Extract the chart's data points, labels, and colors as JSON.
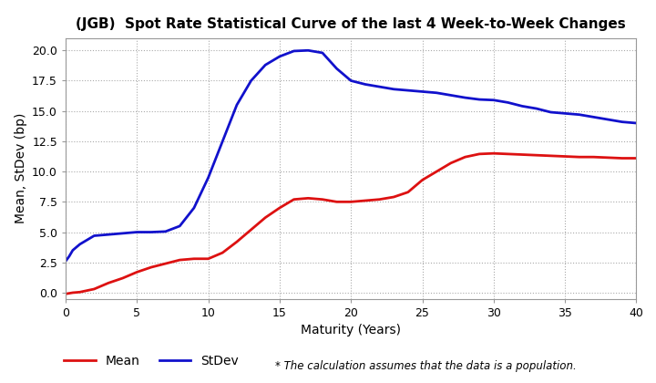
{
  "title": "(JGB)  Spot Rate Statistical Curve of the last 4 Week-to-Week Changes",
  "xlabel": "Maturity (Years)",
  "ylabel": "Mean, StDev (bp)",
  "xlim": [
    0,
    40
  ],
  "ylim": [
    -0.5,
    21
  ],
  "yticks": [
    0.0,
    2.5,
    5.0,
    7.5,
    10.0,
    12.5,
    15.0,
    17.5,
    20.0
  ],
  "xticks": [
    0,
    5,
    10,
    15,
    20,
    25,
    30,
    35,
    40
  ],
  "mean_color": "#dd1111",
  "stdev_color": "#1111cc",
  "background_color": "#ffffff",
  "legend_note": "* The calculation assumes that the data is a population.",
  "mean_x": [
    0,
    0.25,
    0.5,
    1,
    2,
    3,
    4,
    5,
    6,
    7,
    8,
    9,
    10,
    11,
    12,
    13,
    14,
    15,
    16,
    17,
    18,
    19,
    20,
    21,
    22,
    23,
    24,
    25,
    26,
    27,
    28,
    29,
    30,
    31,
    32,
    33,
    34,
    35,
    36,
    37,
    38,
    39,
    40
  ],
  "mean_y": [
    -0.1,
    -0.05,
    0.0,
    0.05,
    0.3,
    0.8,
    1.2,
    1.7,
    2.1,
    2.4,
    2.7,
    2.8,
    2.8,
    3.3,
    4.2,
    5.2,
    6.2,
    7.0,
    7.7,
    7.8,
    7.7,
    7.5,
    7.5,
    7.6,
    7.7,
    7.9,
    8.3,
    9.3,
    10.0,
    10.7,
    11.2,
    11.45,
    11.5,
    11.45,
    11.4,
    11.35,
    11.3,
    11.25,
    11.2,
    11.2,
    11.15,
    11.1,
    11.1
  ],
  "stdev_x": [
    0,
    0.25,
    0.5,
    1,
    2,
    3,
    4,
    5,
    6,
    7,
    8,
    9,
    10,
    11,
    12,
    13,
    14,
    15,
    16,
    17,
    18,
    19,
    20,
    21,
    22,
    23,
    24,
    25,
    26,
    27,
    28,
    29,
    30,
    31,
    32,
    33,
    34,
    35,
    36,
    37,
    38,
    39,
    40
  ],
  "stdev_y": [
    2.6,
    3.0,
    3.5,
    4.0,
    4.7,
    4.8,
    4.9,
    5.0,
    5.0,
    5.05,
    5.5,
    7.0,
    9.5,
    12.5,
    15.5,
    17.5,
    18.8,
    19.5,
    19.95,
    20.0,
    19.8,
    18.5,
    17.5,
    17.2,
    17.0,
    16.8,
    16.7,
    16.6,
    16.5,
    16.3,
    16.1,
    15.95,
    15.9,
    15.7,
    15.4,
    15.2,
    14.9,
    14.8,
    14.7,
    14.5,
    14.3,
    14.1,
    14.0
  ]
}
